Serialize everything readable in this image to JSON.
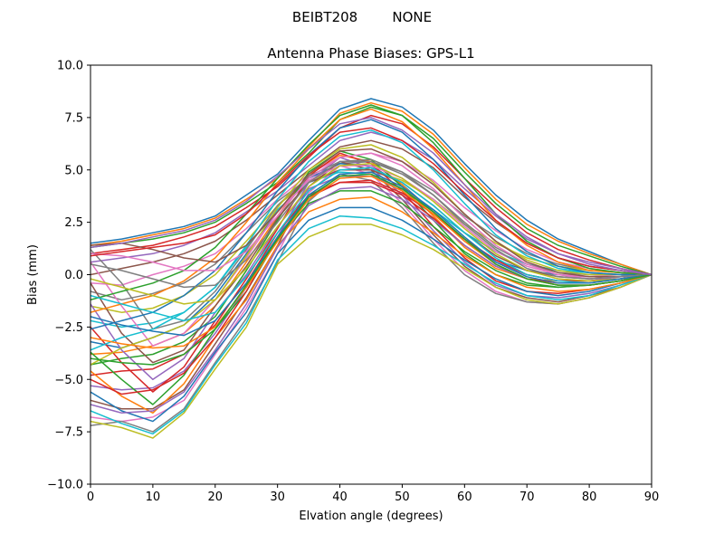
{
  "figure": {
    "suptitle": "BEIBT208        NONE"
  },
  "chart_data": {
    "type": "line",
    "title": "Antenna Phase Biases: GPS-L1",
    "xlabel": "Elvation angle (degrees)",
    "ylabel": "Bias (mm)",
    "xlim": [
      0,
      90
    ],
    "ylim": [
      -10,
      10
    ],
    "xticks": [
      0,
      10,
      20,
      30,
      40,
      50,
      60,
      70,
      80,
      90
    ],
    "yticks": [
      -10.0,
      -7.5,
      -5.0,
      -2.5,
      0.0,
      2.5,
      5.0,
      7.5,
      10.0
    ],
    "xtick_labels": [
      "0",
      "10",
      "20",
      "30",
      "40",
      "50",
      "60",
      "70",
      "80",
      "90"
    ],
    "ytick_labels": [
      "−10.0",
      "−7.5",
      "−5.0",
      "−2.5",
      "0.0",
      "2.5",
      "5.0",
      "7.5",
      "10.0"
    ],
    "grid": false,
    "legend": false,
    "palette": [
      "#1f77b4",
      "#ff7f0e",
      "#2ca02c",
      "#d62728",
      "#9467bd",
      "#8c564b",
      "#e377c2",
      "#7f7f7f",
      "#bcbd22",
      "#17becf"
    ],
    "x": [
      0,
      5,
      10,
      15,
      20,
      25,
      30,
      35,
      40,
      45,
      50,
      55,
      60,
      65,
      70,
      75,
      80,
      85,
      90
    ],
    "series": [
      {
        "values": [
          1.5,
          1.7,
          2.0,
          2.3,
          2.8,
          3.8,
          4.8,
          6.4,
          7.9,
          8.4,
          8.0,
          6.9,
          5.3,
          3.8,
          2.6,
          1.7,
          1.1,
          0.5,
          0.0
        ]
      },
      {
        "values": [
          1.4,
          1.6,
          1.9,
          2.2,
          2.7,
          3.6,
          4.6,
          6.1,
          7.7,
          8.2,
          7.8,
          6.7,
          5.1,
          3.6,
          2.4,
          1.6,
          1.0,
          0.5,
          0.0
        ]
      },
      {
        "values": [
          1.3,
          1.5,
          1.7,
          2.0,
          2.5,
          3.4,
          4.4,
          5.8,
          7.4,
          8.0,
          7.6,
          6.5,
          4.9,
          3.4,
          2.2,
          1.4,
          0.9,
          0.4,
          0.0
        ]
      },
      {
        "values": [
          1.0,
          1.2,
          1.4,
          1.8,
          2.3,
          3.2,
          4.2,
          5.6,
          7.0,
          7.6,
          7.2,
          6.1,
          4.6,
          3.2,
          2.0,
          1.2,
          0.7,
          0.3,
          0.0
        ]
      },
      {
        "values": [
          0.6,
          0.8,
          1.0,
          1.4,
          2.0,
          3.0,
          4.0,
          5.2,
          6.4,
          6.8,
          6.4,
          5.5,
          4.1,
          2.8,
          1.7,
          1.0,
          0.6,
          0.3,
          0.0
        ]
      },
      {
        "values": [
          0.0,
          0.3,
          0.6,
          1.0,
          1.6,
          2.6,
          3.8,
          5.0,
          6.1,
          6.4,
          6.0,
          5.1,
          3.7,
          2.5,
          1.5,
          0.8,
          0.4,
          0.2,
          0.0
        ]
      },
      {
        "values": [
          -0.4,
          -0.5,
          0.0,
          0.4,
          1.0,
          2.2,
          3.6,
          4.8,
          5.6,
          5.8,
          5.4,
          4.5,
          3.2,
          2.1,
          1.2,
          0.6,
          0.3,
          0.1,
          0.0
        ]
      },
      {
        "values": [
          -0.8,
          -1.2,
          -0.9,
          -0.4,
          0.5,
          2.0,
          3.5,
          4.6,
          5.3,
          5.4,
          4.9,
          4.0,
          2.8,
          1.8,
          1.0,
          0.5,
          0.2,
          0.1,
          0.0
        ]
      },
      {
        "values": [
          -1.5,
          -1.8,
          -1.6,
          -1.0,
          0.0,
          1.6,
          3.3,
          4.5,
          5.0,
          5.0,
          4.5,
          3.6,
          2.4,
          1.5,
          0.8,
          0.4,
          0.2,
          0.1,
          0.0
        ]
      },
      {
        "values": [
          -2.2,
          -2.5,
          -2.3,
          -1.8,
          -0.6,
          1.3,
          3.1,
          4.4,
          4.9,
          4.8,
          4.1,
          3.1,
          2.0,
          1.1,
          0.5,
          0.2,
          0.1,
          0.0,
          0.0
        ]
      },
      {
        "values": [
          -3.2,
          -3.5,
          -3.0,
          -2.4,
          -1.0,
          1.0,
          3.0,
          4.6,
          5.3,
          5.2,
          4.3,
          3.0,
          1.6,
          0.7,
          0.2,
          0.0,
          -0.1,
          -0.1,
          0.0
        ]
      },
      {
        "values": [
          -3.8,
          -3.7,
          -3.4,
          -2.8,
          -1.5,
          0.6,
          2.8,
          4.8,
          5.7,
          5.4,
          4.3,
          2.8,
          1.3,
          0.3,
          -0.2,
          -0.3,
          -0.3,
          -0.2,
          0.0
        ]
      },
      {
        "values": [
          -4.3,
          -4.0,
          -3.8,
          -3.2,
          -2.0,
          0.2,
          2.6,
          4.9,
          5.9,
          5.5,
          4.2,
          2.6,
          1.0,
          0.0,
          -0.5,
          -0.6,
          -0.5,
          -0.3,
          0.0
        ]
      },
      {
        "values": [
          -4.8,
          -4.6,
          -4.5,
          -3.8,
          -2.4,
          -0.2,
          2.2,
          4.7,
          5.8,
          5.3,
          4.0,
          2.3,
          0.8,
          -0.3,
          -0.8,
          -0.9,
          -0.7,
          -0.4,
          0.0
        ]
      },
      {
        "values": [
          -5.3,
          -5.5,
          -5.4,
          -4.6,
          -2.8,
          -0.6,
          1.8,
          4.4,
          5.6,
          5.1,
          3.8,
          2.1,
          0.6,
          -0.5,
          -1.0,
          -1.1,
          -0.9,
          -0.5,
          0.0
        ]
      },
      {
        "values": [
          -6.0,
          -6.4,
          -6.4,
          -5.5,
          -3.3,
          -1.1,
          1.4,
          4.2,
          5.4,
          5.0,
          3.6,
          1.9,
          0.4,
          -0.6,
          -1.1,
          -1.3,
          -1.0,
          -0.6,
          0.0
        ]
      },
      {
        "values": [
          -6.8,
          -7.0,
          -6.8,
          -6.0,
          -3.8,
          -1.6,
          1.0,
          3.9,
          5.2,
          4.8,
          3.4,
          1.7,
          0.2,
          -0.8,
          -1.3,
          -1.4,
          -1.1,
          -0.6,
          0.0
        ]
      },
      {
        "values": [
          -7.2,
          -7.0,
          -7.5,
          -6.4,
          -4.2,
          -2.1,
          0.6,
          3.5,
          4.8,
          4.5,
          3.2,
          1.5,
          0.0,
          -0.9,
          -1.3,
          -1.4,
          -1.1,
          -0.6,
          0.0
        ]
      },
      {
        "values": [
          -7.0,
          -7.3,
          -7.8,
          -6.6,
          -4.5,
          -2.5,
          0.5,
          1.8,
          2.4,
          2.4,
          1.9,
          1.2,
          0.3,
          -0.6,
          -1.2,
          -1.4,
          -1.1,
          -0.6,
          0.0
        ]
      },
      {
        "values": [
          -6.5,
          -7.1,
          -7.6,
          -6.5,
          -4.3,
          -2.3,
          0.7,
          2.2,
          2.8,
          2.7,
          2.2,
          1.4,
          0.5,
          -0.4,
          -1.0,
          -1.2,
          -1.0,
          -0.5,
          0.0
        ]
      },
      {
        "values": [
          -5.6,
          -6.5,
          -7.0,
          -5.8,
          -3.7,
          -1.8,
          1.0,
          2.6,
          3.2,
          3.2,
          2.6,
          1.7,
          0.7,
          -0.2,
          -0.8,
          -1.0,
          -0.8,
          -0.4,
          0.0
        ]
      },
      {
        "values": [
          -4.6,
          -5.8,
          -6.6,
          -5.2,
          -3.0,
          -1.2,
          1.4,
          3.0,
          3.6,
          3.7,
          3.0,
          2.0,
          0.9,
          0.0,
          -0.6,
          -0.8,
          -0.7,
          -0.4,
          0.0
        ]
      },
      {
        "values": [
          -3.7,
          -5.0,
          -6.2,
          -4.8,
          -2.6,
          -0.8,
          1.7,
          3.4,
          4.0,
          4.0,
          3.4,
          2.3,
          1.1,
          0.2,
          -0.4,
          -0.6,
          -0.5,
          -0.3,
          0.0
        ]
      },
      {
        "values": [
          -2.5,
          -4.2,
          -5.6,
          -4.4,
          -2.2,
          -0.4,
          2.0,
          3.8,
          4.4,
          4.4,
          3.8,
          2.7,
          1.4,
          0.4,
          -0.2,
          -0.4,
          -0.4,
          -0.2,
          0.0
        ]
      },
      {
        "values": [
          -1.4,
          -3.6,
          -5.0,
          -4.0,
          -1.8,
          0.0,
          2.3,
          4.1,
          4.7,
          4.7,
          4.1,
          3.0,
          1.7,
          0.6,
          0.0,
          -0.3,
          -0.3,
          -0.1,
          0.0
        ]
      },
      {
        "values": [
          -0.4,
          -2.8,
          -4.2,
          -3.6,
          -1.5,
          0.4,
          2.7,
          4.4,
          5.0,
          5.0,
          4.4,
          3.3,
          2.0,
          0.9,
          0.2,
          -0.1,
          -0.2,
          -0.1,
          0.0
        ]
      },
      {
        "values": [
          0.6,
          -1.5,
          -3.4,
          -2.8,
          -1.2,
          0.8,
          3.0,
          4.5,
          5.2,
          5.2,
          4.6,
          3.6,
          2.3,
          1.1,
          0.4,
          0.0,
          -0.1,
          0.0,
          0.0
        ]
      },
      {
        "values": [
          1.2,
          -0.4,
          -2.6,
          -2.2,
          -0.8,
          1.2,
          3.3,
          4.7,
          5.4,
          5.4,
          4.8,
          3.8,
          2.5,
          1.3,
          0.5,
          0.1,
          0.0,
          0.0,
          0.0
        ]
      },
      {
        "values": [
          -4.3,
          -3.5,
          -3.0,
          -2.4,
          -1.2,
          0.9,
          3.2,
          5.0,
          6.0,
          6.2,
          5.6,
          4.4,
          2.9,
          1.6,
          0.7,
          0.2,
          0.0,
          0.0,
          0.0
        ]
      },
      {
        "values": [
          -3.6,
          -3.0,
          -2.6,
          -1.8,
          -0.6,
          1.4,
          3.6,
          5.4,
          6.6,
          6.9,
          6.3,
          5.0,
          3.4,
          1.9,
          0.9,
          0.3,
          0.1,
          0.0,
          0.0
        ]
      },
      {
        "values": [
          -2.6,
          -2.2,
          -1.8,
          -1.0,
          0.2,
          2.0,
          4.0,
          5.7,
          7.0,
          7.4,
          6.8,
          5.5,
          3.8,
          2.2,
          1.1,
          0.4,
          0.1,
          0.0,
          0.0
        ]
      },
      {
        "values": [
          -1.8,
          -1.4,
          -1.0,
          -0.3,
          0.8,
          2.5,
          4.4,
          6.0,
          7.4,
          7.9,
          7.3,
          6.0,
          4.3,
          2.6,
          1.4,
          0.6,
          0.2,
          0.1,
          0.0
        ]
      },
      {
        "values": [
          -1.2,
          -0.8,
          -0.4,
          0.2,
          1.3,
          2.9,
          4.6,
          6.2,
          7.6,
          8.1,
          7.6,
          6.3,
          4.6,
          2.9,
          1.6,
          0.8,
          0.3,
          0.1,
          0.0
        ]
      },
      {
        "values": [
          -5.0,
          -5.7,
          -5.5,
          -4.7,
          -3.0,
          -0.8,
          1.8,
          3.7,
          4.4,
          4.5,
          3.9,
          2.9,
          1.7,
          0.7,
          0.0,
          -0.3,
          -0.3,
          -0.2,
          0.0
        ]
      },
      {
        "values": [
          -6.2,
          -6.6,
          -6.5,
          -5.6,
          -3.6,
          -1.4,
          1.3,
          3.3,
          4.1,
          4.2,
          3.6,
          2.6,
          1.4,
          0.4,
          -0.2,
          -0.5,
          -0.5,
          -0.3,
          0.0
        ]
      },
      {
        "values": [
          1.4,
          1.5,
          1.2,
          0.8,
          0.6,
          1.4,
          3.0,
          4.8,
          5.9,
          6.0,
          5.4,
          4.3,
          2.9,
          1.6,
          0.6,
          0.1,
          -0.1,
          -0.1,
          0.0
        ]
      },
      {
        "values": [
          1.0,
          0.9,
          0.6,
          0.2,
          0.2,
          1.1,
          2.8,
          4.6,
          5.6,
          5.8,
          5.2,
          4.1,
          2.7,
          1.4,
          0.5,
          0.0,
          -0.2,
          -0.1,
          0.0
        ]
      },
      {
        "values": [
          0.5,
          0.2,
          -0.2,
          -0.6,
          -0.5,
          0.7,
          2.5,
          4.4,
          5.4,
          5.5,
          4.9,
          3.8,
          2.4,
          1.2,
          0.3,
          -0.1,
          -0.2,
          -0.1,
          0.0
        ]
      },
      {
        "values": [
          -0.2,
          -0.6,
          -1.0,
          -1.4,
          -1.2,
          0.3,
          2.3,
          4.2,
          5.2,
          5.3,
          4.6,
          3.5,
          2.2,
          1.0,
          0.2,
          -0.2,
          -0.3,
          -0.2,
          0.0
        ]
      },
      {
        "values": [
          -1.0,
          -1.4,
          -1.8,
          -2.2,
          -1.8,
          -0.1,
          2.0,
          4.0,
          5.0,
          5.1,
          4.4,
          3.3,
          2.0,
          0.8,
          0.0,
          -0.3,
          -0.4,
          -0.2,
          0.0
        ]
      },
      {
        "values": [
          -2.0,
          -2.4,
          -2.7,
          -2.9,
          -2.2,
          -0.4,
          1.8,
          3.8,
          4.8,
          4.9,
          4.2,
          3.1,
          1.8,
          0.6,
          -0.1,
          -0.4,
          -0.4,
          -0.2,
          0.0
        ]
      },
      {
        "values": [
          -3.0,
          -3.3,
          -3.5,
          -3.4,
          -2.5,
          -0.6,
          1.6,
          3.6,
          4.6,
          4.7,
          4.0,
          2.9,
          1.6,
          0.5,
          -0.2,
          -0.5,
          -0.5,
          -0.3,
          0.0
        ]
      },
      {
        "values": [
          -4.0,
          -4.2,
          -4.3,
          -3.8,
          -2.6,
          -0.5,
          1.7,
          3.7,
          4.7,
          4.8,
          4.1,
          3.0,
          1.7,
          0.5,
          -0.2,
          -0.5,
          -0.5,
          -0.3,
          0.0
        ]
      },
      {
        "values": [
          0.9,
          1.1,
          1.3,
          1.5,
          1.9,
          2.9,
          4.3,
          5.7,
          6.8,
          7.0,
          6.4,
          5.3,
          3.9,
          2.6,
          1.5,
          0.8,
          0.4,
          0.2,
          0.0
        ]
      },
      {
        "values": [
          1.3,
          1.5,
          1.8,
          2.1,
          2.6,
          3.5,
          4.7,
          6.0,
          7.2,
          7.5,
          6.9,
          5.8,
          4.3,
          2.9,
          1.8,
          1.0,
          0.5,
          0.2,
          0.0
        ]
      }
    ]
  }
}
